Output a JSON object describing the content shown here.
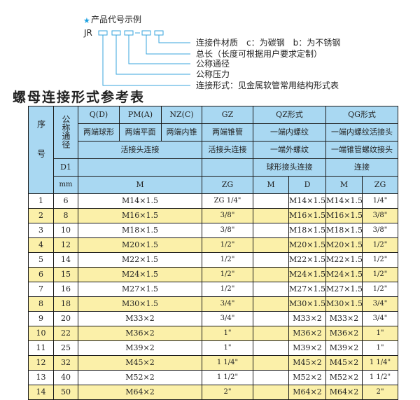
{
  "example": {
    "heading": "产品代号示例",
    "code_prefix": "JR",
    "labels": [
      "连接件材质　c：为碳钢　b：为不锈钢",
      "总长（长度可根据用户要求定制）",
      "公称通径",
      "公称压力",
      "连接形式：见金属软管常用结构形式表"
    ]
  },
  "title": "螺母连接形式参考表",
  "colors": {
    "header": "#a9d8f2",
    "row_alt": "#fbf0a9",
    "star": "#1aa0e0"
  },
  "header": {
    "seq": "序号",
    "dn": "公称通径",
    "q": "Q(D)",
    "pm": "PM(A)",
    "nz": "NZ(C)",
    "gz": "GZ",
    "qz": "QZ形式",
    "qg": "QG形式",
    "q_desc": "两端球形",
    "pm_desc": "两端平面",
    "nz_desc": "两端内锥",
    "gz_desc": "两端锥管",
    "qz_desc1": "一端内螺纹",
    "qg_desc1": "一端内螺纹活接头",
    "union": "活接头连接",
    "gz_union": "活接头连接",
    "qz_desc2": "一端外螺纹",
    "qg_desc2": "一端锥管螺纹接头",
    "d1": "D1",
    "qz_desc3": "球形接头连接",
    "qg_desc3": "连接",
    "mm": "mm",
    "m": "M",
    "zg": "ZG",
    "qz_m": "M",
    "qz_d": "D",
    "qg_m": "M",
    "qg_zg": "ZG"
  },
  "rows": [
    {
      "no": "1",
      "dn": "6",
      "m": "M14×1.5",
      "zg": "ZG 1/4\"",
      "qz_m": "",
      "qz_d": "M14×1.5",
      "qg_m": "M14×1.5",
      "qg_zg": "1/4\""
    },
    {
      "no": "2",
      "dn": "8",
      "m": "M16×1.5",
      "zg": "3/8\"",
      "qz_m": "",
      "qz_d": "M16×1.5",
      "qg_m": "M16×1.5",
      "qg_zg": "3/8\""
    },
    {
      "no": "3",
      "dn": "10",
      "m": "M18×1.5",
      "zg": "3/8\"",
      "qz_m": "",
      "qz_d": "M18×1.5",
      "qg_m": "M18×1.5",
      "qg_zg": "3/8\""
    },
    {
      "no": "4",
      "dn": "12",
      "m": "M20×1.5",
      "zg": "1/2\"",
      "qz_m": "",
      "qz_d": "M20×1.5",
      "qg_m": "M20×1.5",
      "qg_zg": "1/2\""
    },
    {
      "no": "5",
      "dn": "14",
      "m": "M22×1.5",
      "zg": "1/2\"",
      "qz_m": "",
      "qz_d": "M22×1.5",
      "qg_m": "M22×1.5",
      "qg_zg": "1/2\""
    },
    {
      "no": "6",
      "dn": "15",
      "m": "M24×1.5",
      "zg": "1/2\"",
      "qz_m": "",
      "qz_d": "M24×1.5",
      "qg_m": "M24×1.5",
      "qg_zg": "1/2\""
    },
    {
      "no": "7",
      "dn": "16",
      "m": "M27×1.5",
      "zg": "1/2\"",
      "qz_m": "",
      "qz_d": "M27×1.5",
      "qg_m": "M27×1.5",
      "qg_zg": "1/2\""
    },
    {
      "no": "8",
      "dn": "18",
      "m": "M30×1.5",
      "zg": "3/4\"",
      "qz_m": "",
      "qz_d": "M30×1.5",
      "qg_m": "M30×1.5",
      "qg_zg": "3/4\""
    },
    {
      "no": "9",
      "dn": "20",
      "m": "M33×2",
      "zg": "3/4\"",
      "qz_m": "",
      "qz_d": "M33×2",
      "qg_m": "M33×2",
      "qg_zg": "3/4\""
    },
    {
      "no": "10",
      "dn": "22",
      "m": "M36×2",
      "zg": "1\"",
      "qz_m": "",
      "qz_d": "M36×2",
      "qg_m": "M36×2",
      "qg_zg": "1\""
    },
    {
      "no": "11",
      "dn": "25",
      "m": "M39×2",
      "zg": "1\"",
      "qz_m": "",
      "qz_d": "M39×2",
      "qg_m": "M39×2",
      "qg_zg": "1\""
    },
    {
      "no": "12",
      "dn": "32",
      "m": "M45×2",
      "zg": "1 1/4\"",
      "qz_m": "",
      "qz_d": "M45×2",
      "qg_m": "M45×2",
      "qg_zg": "1 1/4\""
    },
    {
      "no": "13",
      "dn": "40",
      "m": "M52×2",
      "zg": "1 1/2\"",
      "qz_m": "",
      "qz_d": "M52×2",
      "qg_m": "M52×2",
      "qg_zg": "1 1/2\""
    },
    {
      "no": "14",
      "dn": "50",
      "m": "M64×2",
      "zg": "2\"",
      "qz_m": "",
      "qz_d": "M64×2",
      "qg_m": "M64×2",
      "qg_zg": "2\""
    }
  ]
}
